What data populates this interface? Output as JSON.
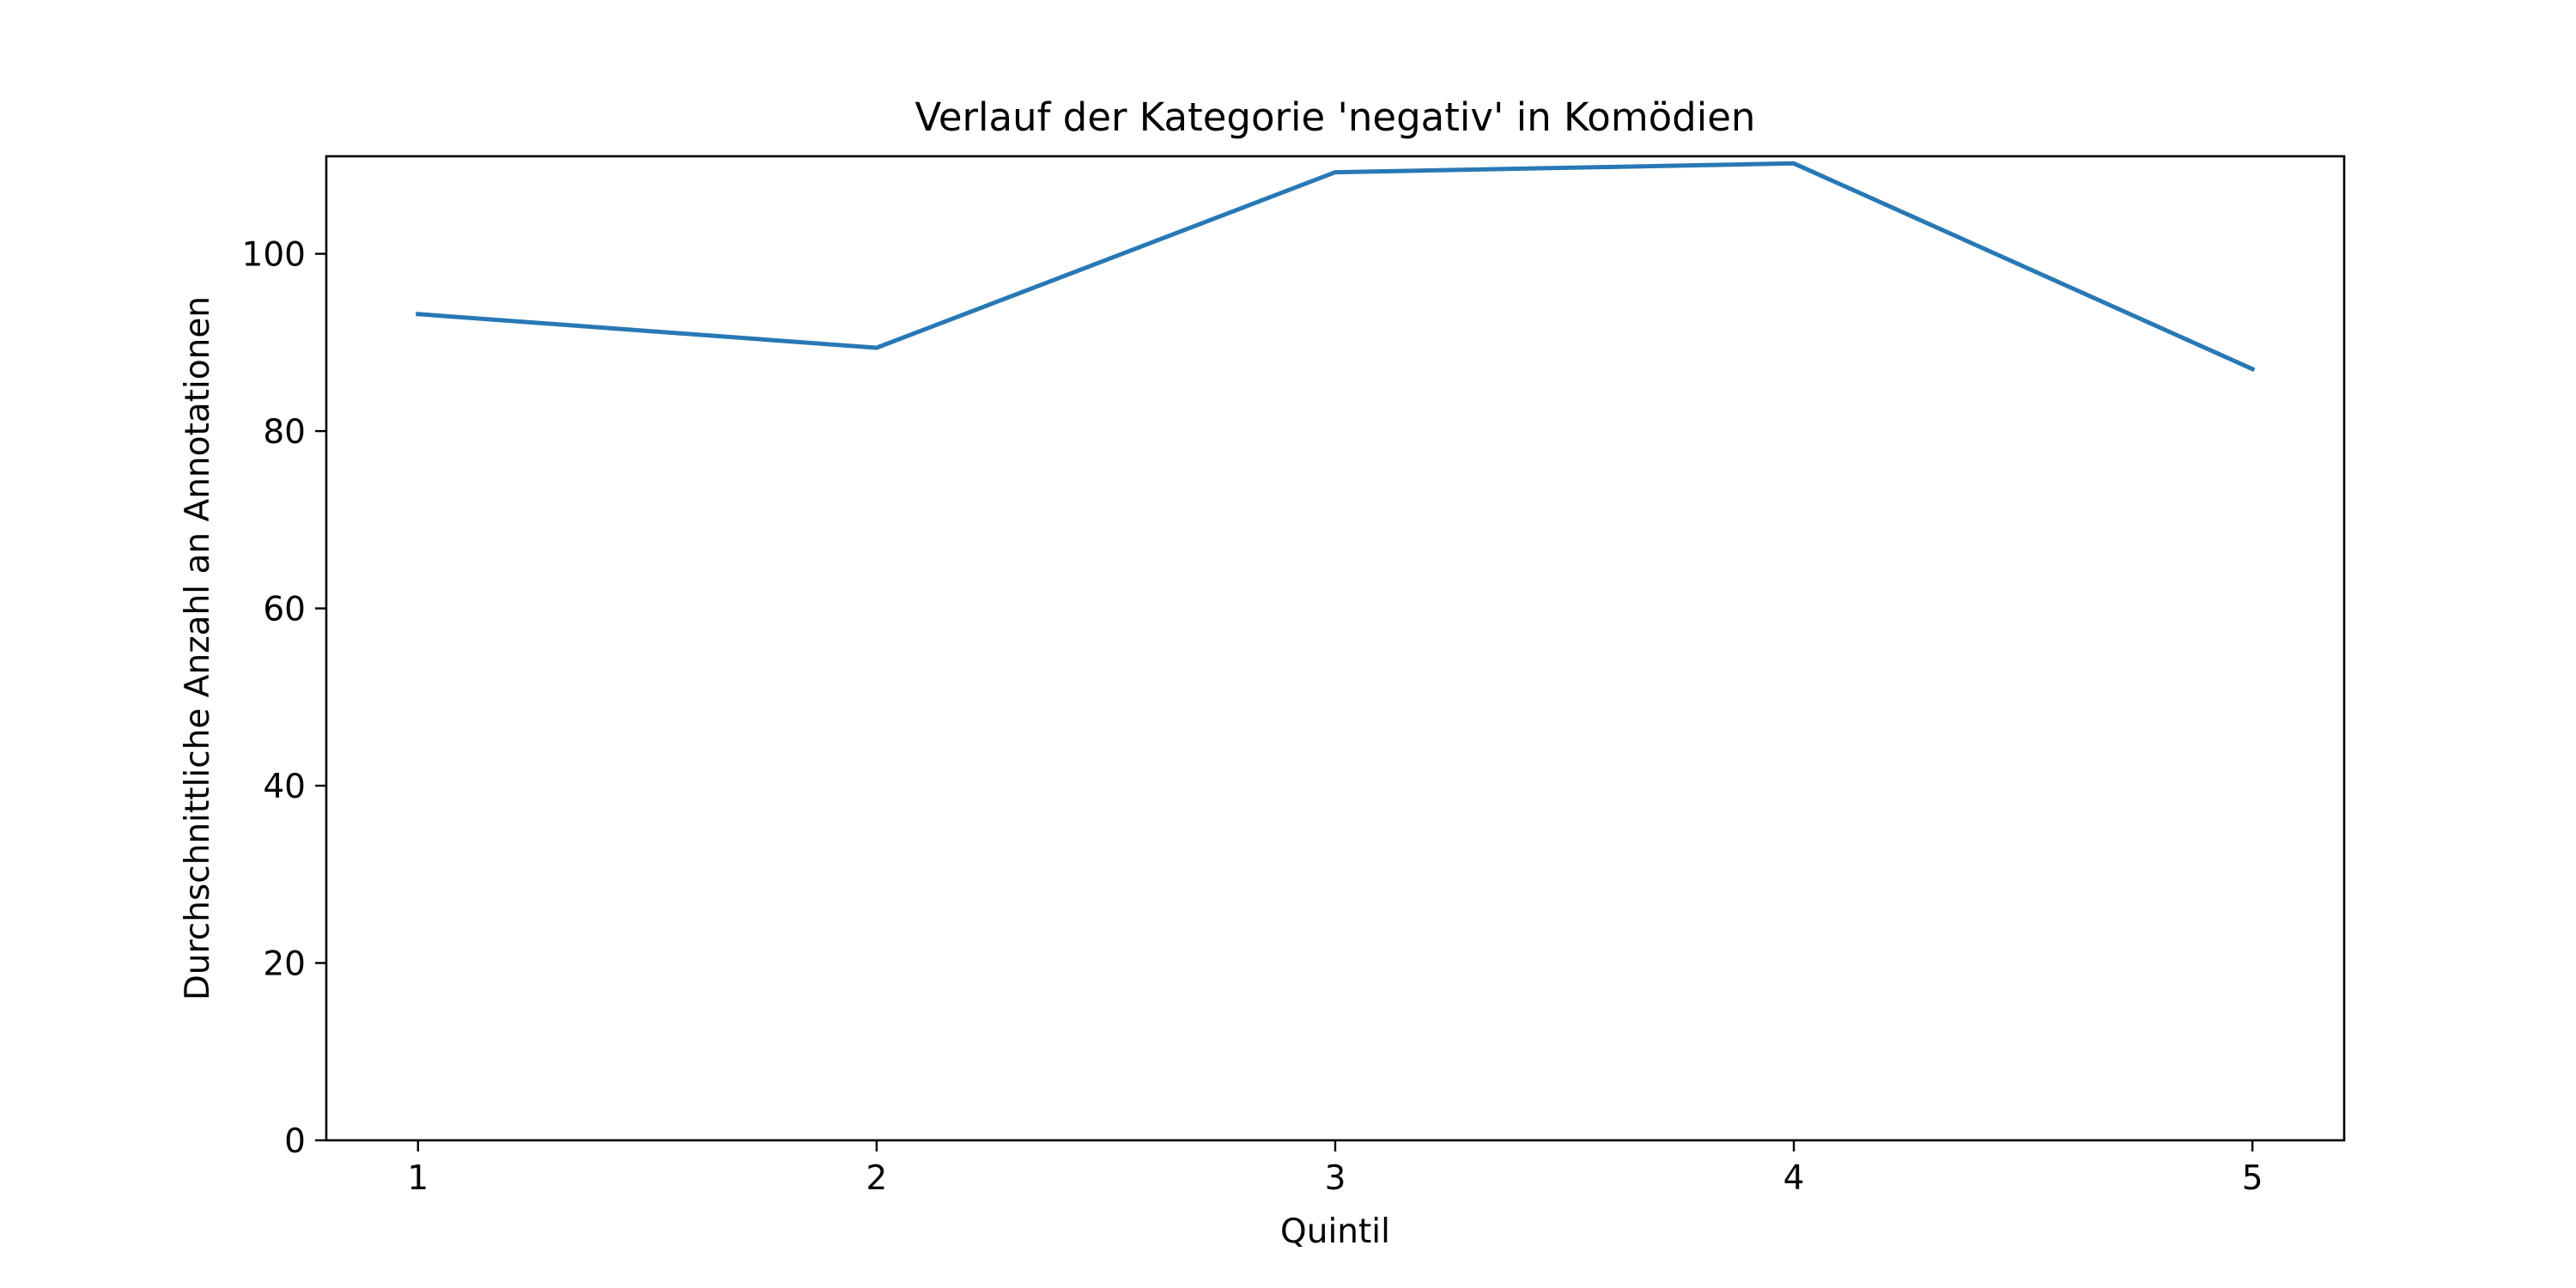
{
  "chart_data": {
    "type": "line",
    "title": "Verlauf der Kategorie 'negativ' in Komödien",
    "xlabel": "Quintil",
    "ylabel": "Durchschnittliche Anzahl an Annotationen",
    "x": [
      1,
      2,
      3,
      4,
      5
    ],
    "x_tick_labels": [
      "1",
      "2",
      "3",
      "4",
      "5"
    ],
    "xlim": [
      0.8,
      5.2
    ],
    "ylim": [
      0,
      111
    ],
    "y_ticks": [
      0,
      20,
      40,
      60,
      80,
      100
    ],
    "y_tick_labels": [
      "0",
      "20",
      "40",
      "60",
      "80",
      "100"
    ],
    "grid": false,
    "legend": "none",
    "series": [
      {
        "values": [
          93.2,
          89.4,
          109.2,
          110.2,
          87.0
        ],
        "color": "#2878b5"
      }
    ]
  }
}
